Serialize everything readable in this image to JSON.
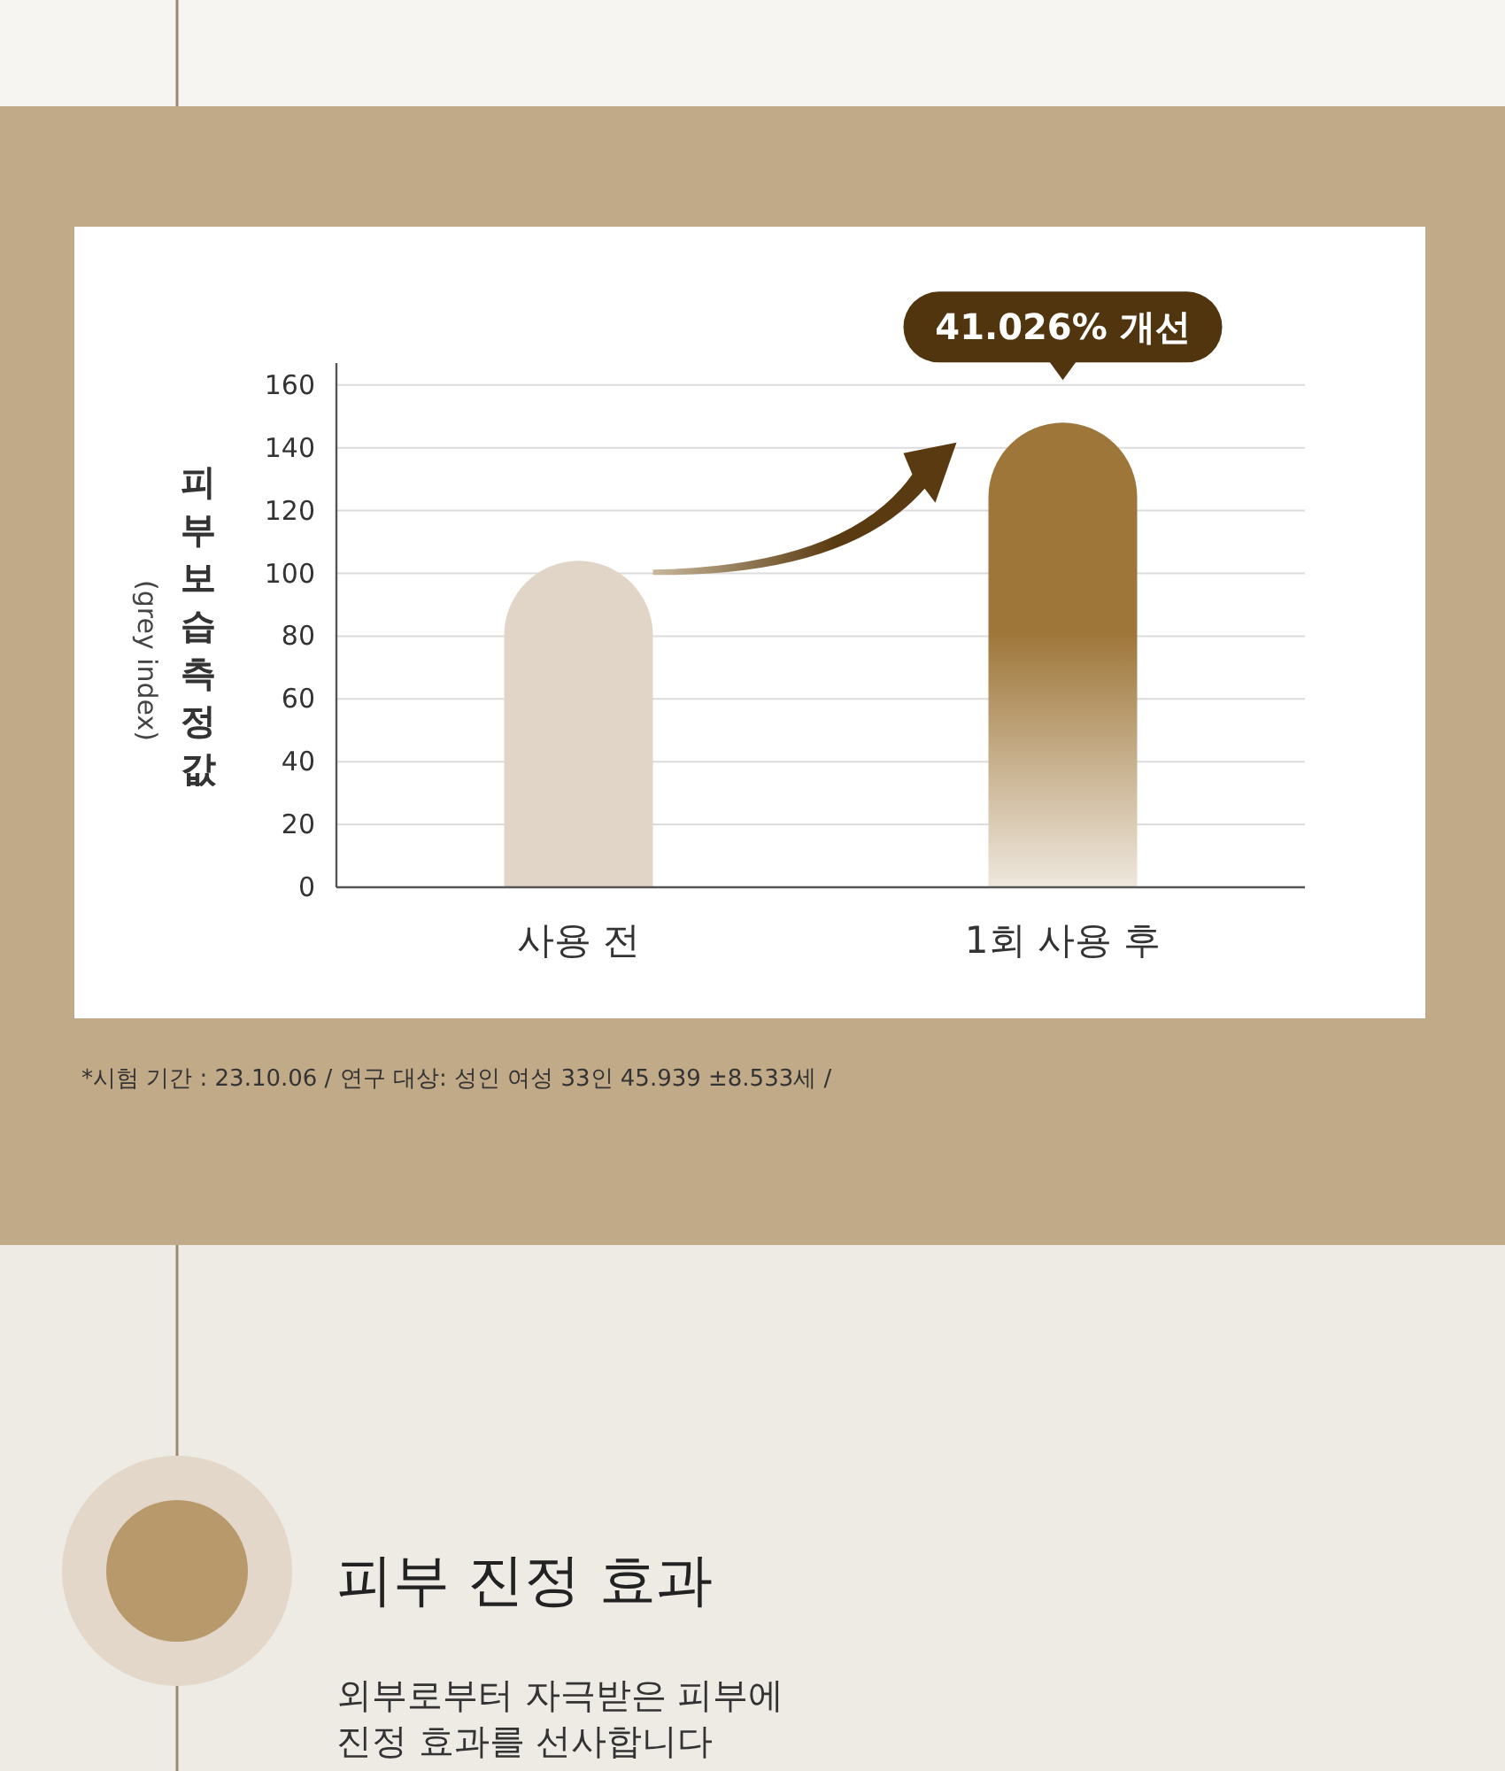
{
  "chart_data": {
    "type": "bar",
    "ylabel": "피부 보습 측정값\n(grey index)",
    "categories": [
      "사용 전",
      "1회 사용 후"
    ],
    "series": [
      {
        "colors": [
          "#e0d5c6",
          "#9e7639"
        ],
        "values": [
          104,
          148
        ]
      }
    ],
    "ylim": [
      0,
      167
    ],
    "yticks": [
      0,
      20,
      40,
      60,
      80,
      100,
      120,
      140,
      160
    ],
    "grid": "y",
    "annotations": [
      {
        "text": "41.026% 개선",
        "x": "1회 사용 후",
        "y": 148
      },
      "*시험 기간 : 23.10.06 / 연구 대상: 성인 여성 33인 45.939 ±8.533세 /",
      "피부 진정 효과",
      "외부로부터 자극받은 피부에",
      "진정 효과를 선사합니다"
    ]
  }
}
